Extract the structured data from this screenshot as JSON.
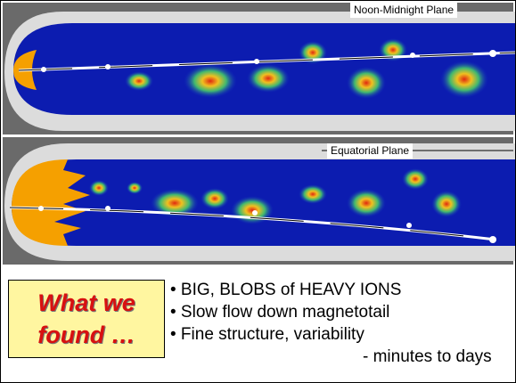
{
  "panels": [
    {
      "label": "Noon-Midnight Plane"
    },
    {
      "label": "Equatorial Plane"
    }
  ],
  "callout": {
    "lines": [
      "What we",
      "found …"
    ]
  },
  "bullets": [
    "• BIG, BLOBS of HEAVY IONS",
    "• Slow flow down magnetotail",
    "• Fine structure, variability",
    "- minutes to days"
  ]
}
